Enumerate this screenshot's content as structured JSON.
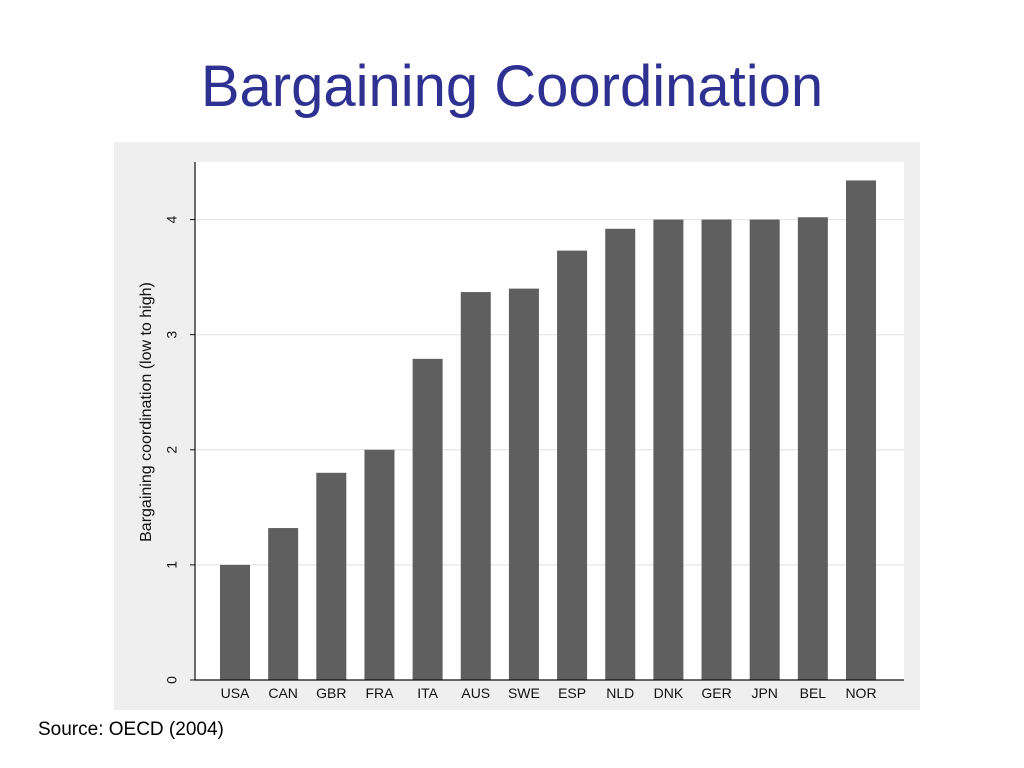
{
  "slide": {
    "title": "Bargaining Coordination",
    "source": "Source: OECD (2004)"
  },
  "chart_data": {
    "type": "bar",
    "categories": [
      "USA",
      "CAN",
      "GBR",
      "FRA",
      "ITA",
      "AUS",
      "SWE",
      "ESP",
      "NLD",
      "DNK",
      "GER",
      "JPN",
      "BEL",
      "NOR"
    ],
    "values": [
      1.0,
      1.32,
      1.8,
      2.0,
      2.79,
      3.37,
      3.4,
      3.73,
      3.92,
      4.0,
      4.0,
      4.0,
      4.02,
      4.34
    ],
    "title": "",
    "xlabel": "",
    "ylabel": "Bargaining coordination (low to high)",
    "ylim": [
      0,
      4.5
    ],
    "yticks": [
      0,
      1,
      2,
      3,
      4
    ],
    "grid": true,
    "bar_color": "#5f5f5f",
    "grid_color": "#e6e6e6",
    "plot_background": "#ffffff",
    "outer_background": "#efefef"
  }
}
